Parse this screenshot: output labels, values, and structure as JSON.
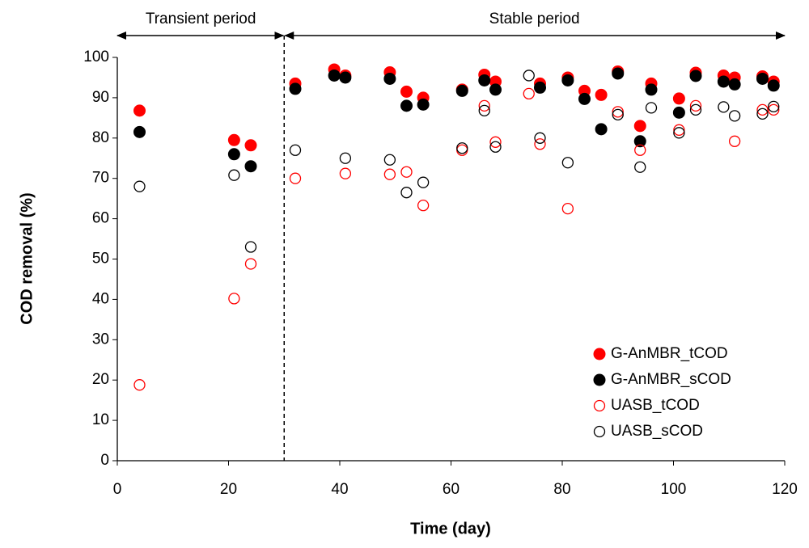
{
  "chart_data": {
    "type": "scatter",
    "xlabel": "Time (day)",
    "ylabel": "COD removal (%)",
    "xlim": [
      0,
      120
    ],
    "xticks": [
      0,
      20,
      40,
      60,
      80,
      100,
      120
    ],
    "ylim": [
      0,
      100
    ],
    "yticks": [
      0,
      10,
      20,
      30,
      40,
      50,
      60,
      70,
      80,
      90,
      100
    ],
    "grid": false,
    "legend": "lower right",
    "divider_x": 30,
    "annotations": [
      "Transient period",
      "Stable period"
    ],
    "series": [
      {
        "name": "G-AnMBR_tCOD",
        "color": "#ff0000",
        "marker": "filled",
        "x": [
          4,
          21,
          24,
          32,
          39,
          41,
          49,
          52,
          55,
          62,
          66,
          68,
          76,
          81,
          84,
          87,
          90,
          94,
          96,
          101,
          104,
          109,
          111,
          116,
          118
        ],
        "values": [
          86.8,
          79.5,
          78.2,
          93.5,
          97,
          95.5,
          96.3,
          91.5,
          90,
          92,
          95.7,
          94,
          93.5,
          95,
          91.7,
          90.7,
          96.5,
          83,
          93.5,
          89.8,
          96.2,
          95.5,
          95,
          95.3,
          94
        ]
      },
      {
        "name": "G-AnMBR_sCOD",
        "color": "#000000",
        "marker": "filled",
        "x": [
          4,
          21,
          24,
          32,
          39,
          41,
          49,
          52,
          55,
          62,
          66,
          68,
          76,
          81,
          84,
          87,
          90,
          94,
          96,
          101,
          104,
          109,
          111,
          116,
          118
        ],
        "values": [
          81.5,
          76,
          73,
          92.2,
          95.5,
          95,
          94.7,
          88,
          88.3,
          91.7,
          94.3,
          92,
          92.5,
          94.3,
          89.7,
          82.2,
          96,
          79.2,
          92,
          86.3,
          95.4,
          94,
          93.3,
          94.7,
          93
        ]
      },
      {
        "name": "UASB_tCOD",
        "color": "#ff0000",
        "marker": "open",
        "x": [
          4,
          21,
          24,
          32,
          41,
          49,
          52,
          55,
          62,
          66,
          68,
          74,
          76,
          81,
          90,
          94,
          101,
          104,
          111,
          116,
          118
        ],
        "values": [
          18.8,
          40.2,
          48.8,
          70,
          71.2,
          71,
          71.6,
          63.3,
          77,
          88,
          79,
          91,
          78.5,
          62.5,
          86.5,
          77,
          82,
          88,
          79.2,
          87,
          87
        ]
      },
      {
        "name": "UASB_sCOD",
        "color": "#000000",
        "marker": "open",
        "x": [
          4,
          21,
          24,
          32,
          41,
          49,
          52,
          55,
          62,
          66,
          68,
          74,
          76,
          81,
          90,
          94,
          96,
          101,
          104,
          109,
          111,
          116,
          118
        ],
        "values": [
          68,
          70.8,
          53,
          77,
          75,
          74.6,
          66.5,
          69,
          77.5,
          86.8,
          77.8,
          95.5,
          80,
          73.9,
          85.8,
          72.8,
          87.5,
          81.3,
          87,
          87.7,
          85.5,
          86,
          87.8
        ]
      }
    ]
  }
}
